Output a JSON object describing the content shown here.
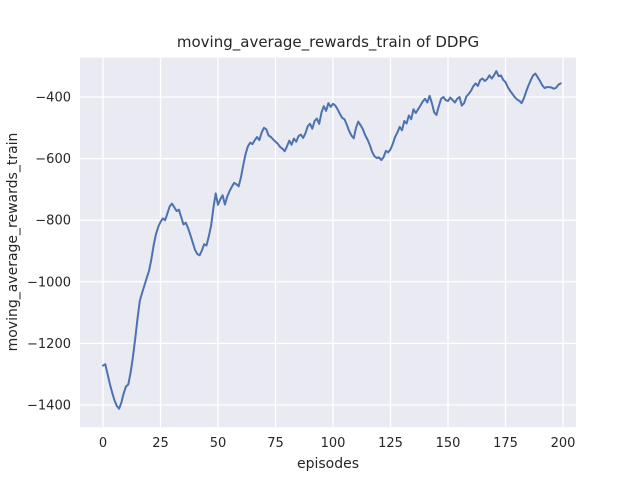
{
  "figure": {
    "background": "#ffffff"
  },
  "chart_data": {
    "type": "line",
    "title": "moving_average_rewards_train of DDPG",
    "xlabel": "episodes",
    "ylabel": "moving_average_rewards_train",
    "style": "seaborn-darkgrid",
    "grid": true,
    "legend": false,
    "axes_background": "#eaeaf2",
    "gridline_color": "#ffffff",
    "line_color": "#4c72b0",
    "text_color": "#262626",
    "x_ticks": [
      0,
      25,
      50,
      75,
      100,
      125,
      150,
      175,
      200
    ],
    "y_ticks": [
      -400,
      -600,
      -800,
      -1000,
      -1200,
      -1400
    ],
    "xlim": [
      -10,
      209
    ],
    "ylim": [
      -1470,
      -268
    ],
    "series": [
      {
        "name": "moving_average_rewards_train",
        "x_start": 0,
        "x_step": 1,
        "values": [
          -1272,
          -1268,
          -1300,
          -1332,
          -1360,
          -1385,
          -1403,
          -1412,
          -1392,
          -1362,
          -1340,
          -1333,
          -1295,
          -1245,
          -1185,
          -1120,
          -1062,
          -1036,
          -1012,
          -988,
          -965,
          -928,
          -882,
          -846,
          -822,
          -806,
          -794,
          -800,
          -778,
          -755,
          -746,
          -758,
          -770,
          -766,
          -790,
          -814,
          -808,
          -826,
          -848,
          -872,
          -896,
          -910,
          -914,
          -898,
          -878,
          -882,
          -852,
          -818,
          -760,
          -713,
          -750,
          -732,
          -719,
          -749,
          -724,
          -706,
          -692,
          -679,
          -683,
          -690,
          -660,
          -620,
          -585,
          -560,
          -548,
          -553,
          -540,
          -530,
          -540,
          -515,
          -500,
          -505,
          -525,
          -530,
          -538,
          -545,
          -552,
          -562,
          -568,
          -576,
          -560,
          -542,
          -555,
          -535,
          -545,
          -527,
          -522,
          -533,
          -518,
          -495,
          -487,
          -503,
          -478,
          -470,
          -487,
          -450,
          -430,
          -445,
          -420,
          -432,
          -422,
          -428,
          -440,
          -455,
          -468,
          -472,
          -490,
          -510,
          -525,
          -534,
          -500,
          -480,
          -492,
          -505,
          -524,
          -538,
          -556,
          -578,
          -592,
          -598,
          -596,
          -605,
          -595,
          -575,
          -580,
          -570,
          -552,
          -530,
          -515,
          -497,
          -508,
          -478,
          -486,
          -460,
          -472,
          -440,
          -452,
          -440,
          -428,
          -415,
          -406,
          -418,
          -396,
          -420,
          -450,
          -458,
          -430,
          -406,
          -400,
          -410,
          -413,
          -402,
          -410,
          -418,
          -406,
          -400,
          -428,
          -420,
          -398,
          -390,
          -380,
          -365,
          -356,
          -364,
          -345,
          -340,
          -348,
          -342,
          -330,
          -340,
          -330,
          -316,
          -332,
          -330,
          -344,
          -352,
          -368,
          -380,
          -390,
          -400,
          -408,
          -412,
          -420,
          -404,
          -382,
          -362,
          -345,
          -330,
          -324,
          -336,
          -348,
          -362,
          -371,
          -368,
          -368,
          -369,
          -373,
          -370,
          -360,
          -356
        ]
      }
    ]
  }
}
